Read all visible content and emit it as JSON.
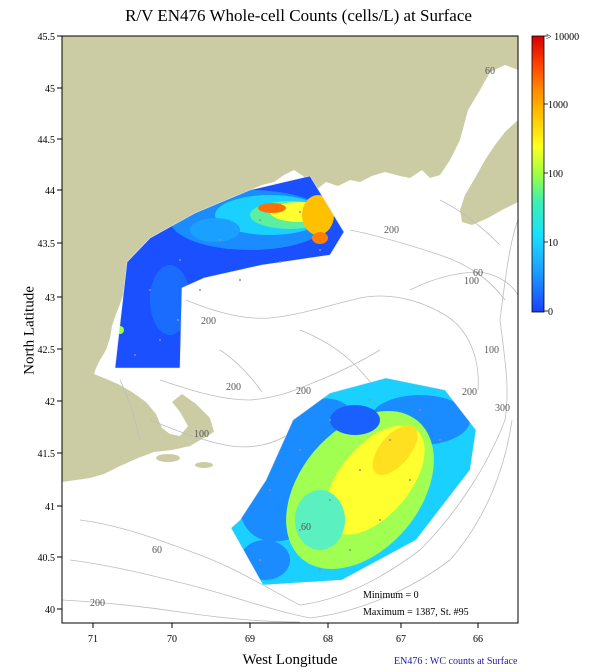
{
  "title": "R/V EN476 Whole-cell Counts (cells/L) at Surface",
  "x_axis": {
    "label": "West Longitude",
    "ticks": [
      "71",
      "70",
      "69",
      "68",
      "67",
      "66"
    ]
  },
  "y_axis": {
    "label": "North Latitude",
    "ticks": [
      "45.5",
      "45",
      "44.5",
      "44",
      "43.5",
      "43",
      "42.5",
      "42",
      "41.5",
      "41",
      "40.5",
      "40"
    ]
  },
  "colorbar": {
    "labels": [
      "> 10000",
      "1000",
      "100",
      "10",
      "0"
    ]
  },
  "contour_labels": [
    "60",
    "100",
    "200",
    "200",
    "60",
    "100",
    "200",
    "200",
    "100",
    "200",
    "300",
    "60",
    "60",
    "200",
    "300"
  ],
  "stats": {
    "minimum": "Minimum = 0",
    "maximum": "Maximum = 1387, St. #95"
  },
  "caption": "EN476 : WC counts at Surface",
  "colors": {
    "land": "#cccca4",
    "water": "#ffffff",
    "contour": "#bdbdbd",
    "low": "#1a5aff",
    "high": "#ff3000"
  }
}
